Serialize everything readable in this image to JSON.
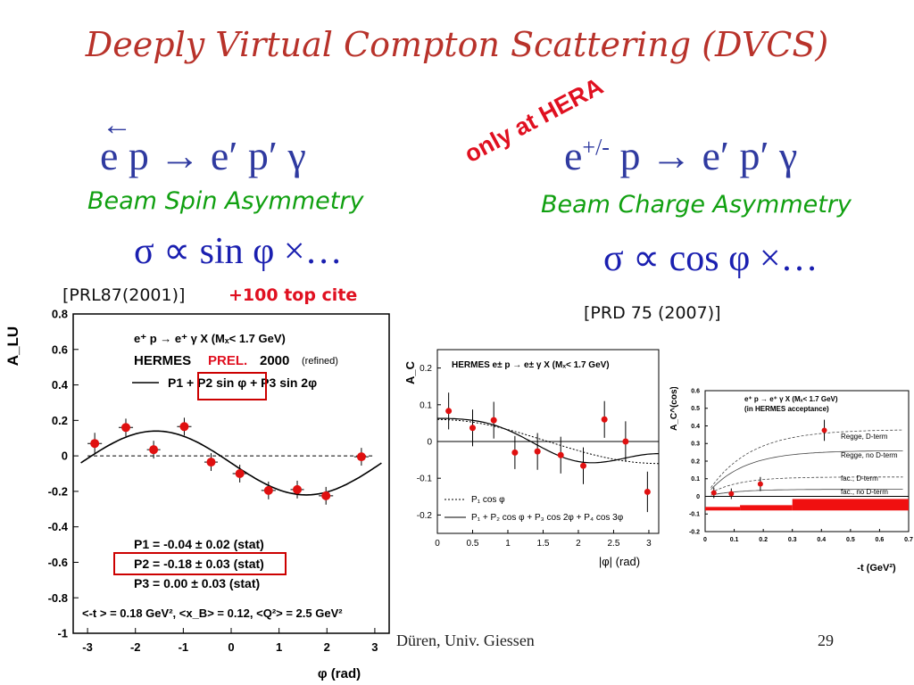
{
  "slide": {
    "title": "Deeply Virtual Compton Scattering (DVCS)",
    "left_reaction": "e p → e′ p′ γ",
    "left_reaction_arrow": "←",
    "left_label": "Beam Spin Asymmetry",
    "left_formula": "σ ∝ sin φ ×…",
    "left_ref": "[PRL87(2001)]",
    "left_ref_note": "+100 top cite",
    "hera_note": "only at HERA",
    "right_reaction_e": "e",
    "right_reaction_sup": "+/-",
    "right_reaction_rest": " p → e′ p′ γ",
    "right_label": "Beam Charge Asymmetry",
    "right_formula": "σ ∝ cos φ ×…",
    "right_ref": "[PRD 75 (2007)]",
    "footer_left": "Düren, Univ. Giessen",
    "footer_page": "29"
  },
  "chart_data": [
    {
      "type": "scatter",
      "ylabel": "A_LU",
      "xlabel": "φ (rad)",
      "xlim": [
        -3.3,
        3.3
      ],
      "ylim": [
        -1,
        0.8
      ],
      "xticks": [
        -3,
        -2,
        -1,
        0,
        1,
        2,
        3
      ],
      "yticks": [
        0.8,
        0.6,
        0.4,
        0.2,
        0,
        -0.2,
        -0.4,
        -0.6,
        -0.8,
        -1
      ],
      "legend_reaction": "e⁺ p → e⁺ γ X    (Mₓ< 1.7 GeV)",
      "legend_hermes": "HERMES",
      "legend_prel": "PREL.",
      "legend_year": "2000",
      "legend_refined": "(refined)",
      "legend_fit": "P1 + P2 sin φ + P3 sin 2φ",
      "fit": {
        "p1": -0.04,
        "p2": -0.18,
        "p3": 0.0
      },
      "params": [
        "P1 = -0.04 ± 0.02 (stat)",
        "P2 = -0.18 ± 0.03 (stat)",
        "P3 =  0.00 ± 0.03 (stat)"
      ],
      "kinematics": "<-t > = 0.18 GeV², <x_B> = 0.12, <Q²> = 2.5 GeV²",
      "points": [
        {
          "x": -2.85,
          "y": 0.07,
          "ex": 0.3,
          "ey": 0.06
        },
        {
          "x": -2.2,
          "y": 0.16,
          "ex": 0.3,
          "ey": 0.05
        },
        {
          "x": -1.62,
          "y": 0.035,
          "ex": 0.28,
          "ey": 0.05
        },
        {
          "x": -0.98,
          "y": 0.165,
          "ex": 0.3,
          "ey": 0.05
        },
        {
          "x": -0.42,
          "y": -0.035,
          "ex": 0.28,
          "ey": 0.05
        },
        {
          "x": 0.18,
          "y": -0.1,
          "ex": 0.3,
          "ey": 0.05
        },
        {
          "x": 0.78,
          "y": -0.195,
          "ex": 0.3,
          "ey": 0.05
        },
        {
          "x": 1.38,
          "y": -0.19,
          "ex": 0.28,
          "ey": 0.05
        },
        {
          "x": 1.98,
          "y": -0.225,
          "ex": 0.3,
          "ey": 0.05
        },
        {
          "x": 2.72,
          "y": -0.005,
          "ex": 0.3,
          "ey": 0.05
        }
      ]
    },
    {
      "type": "scatter",
      "ylabel": "A_C",
      "xlabel": "|φ| (rad)",
      "xlim": [
        0,
        3.14
      ],
      "ylim": [
        -0.25,
        0.25
      ],
      "xticks": [
        0,
        0.5,
        1,
        1.5,
        2,
        2.5,
        3
      ],
      "yticks": [
        0.2,
        0.1,
        0,
        -0.1,
        -0.2
      ],
      "header": "HERMES    e± p → e± γ X  (Mₓ< 1.7 GeV)",
      "legend": [
        "P₁ cos φ",
        "P₁ + P₂ cos φ + P₃ cos 2φ + P₄ cos 3φ"
      ],
      "points": [
        {
          "x": 0.16,
          "y": 0.083,
          "ey": 0.05
        },
        {
          "x": 0.5,
          "y": 0.037,
          "ey": 0.05
        },
        {
          "x": 0.8,
          "y": 0.058,
          "ey": 0.05
        },
        {
          "x": 1.1,
          "y": -0.03,
          "ey": 0.045
        },
        {
          "x": 1.42,
          "y": -0.027,
          "ey": 0.05
        },
        {
          "x": 1.75,
          "y": -0.037,
          "ey": 0.05
        },
        {
          "x": 2.07,
          "y": -0.066,
          "ey": 0.05
        },
        {
          "x": 2.37,
          "y": 0.06,
          "ey": 0.05
        },
        {
          "x": 2.67,
          "y": 0.0,
          "ey": 0.055
        },
        {
          "x": 2.98,
          "y": -0.137,
          "ey": 0.055
        }
      ]
    },
    {
      "type": "scatter",
      "ylabel": "A_C^(cos)",
      "xlabel": "-t (GeV²)",
      "xlim": [
        0,
        0.7
      ],
      "ylim": [
        -0.2,
        0.6
      ],
      "xticks": [
        0,
        0.1,
        0.2,
        0.3,
        0.4,
        0.5,
        0.6,
        0.7
      ],
      "yticks": [
        0.6,
        0.5,
        0.4,
        0.3,
        0.2,
        0.1,
        0,
        -0.1,
        -0.2
      ],
      "header": "e⁺ p → e⁺ γ X    (Mₓ< 1.7 GeV)",
      "subheader": "(in HERMES acceptance)",
      "curve_labels": [
        "Regge, D-term",
        "Regge, no D-term",
        "fac., D-term",
        "fac., no D-term"
      ],
      "points": [
        {
          "x": 0.03,
          "y": 0.02,
          "ey": 0.03
        },
        {
          "x": 0.09,
          "y": 0.015,
          "ey": 0.03
        },
        {
          "x": 0.19,
          "y": 0.07,
          "ey": 0.04
        },
        {
          "x": 0.41,
          "y": 0.375,
          "ey": 0.06
        }
      ]
    }
  ]
}
